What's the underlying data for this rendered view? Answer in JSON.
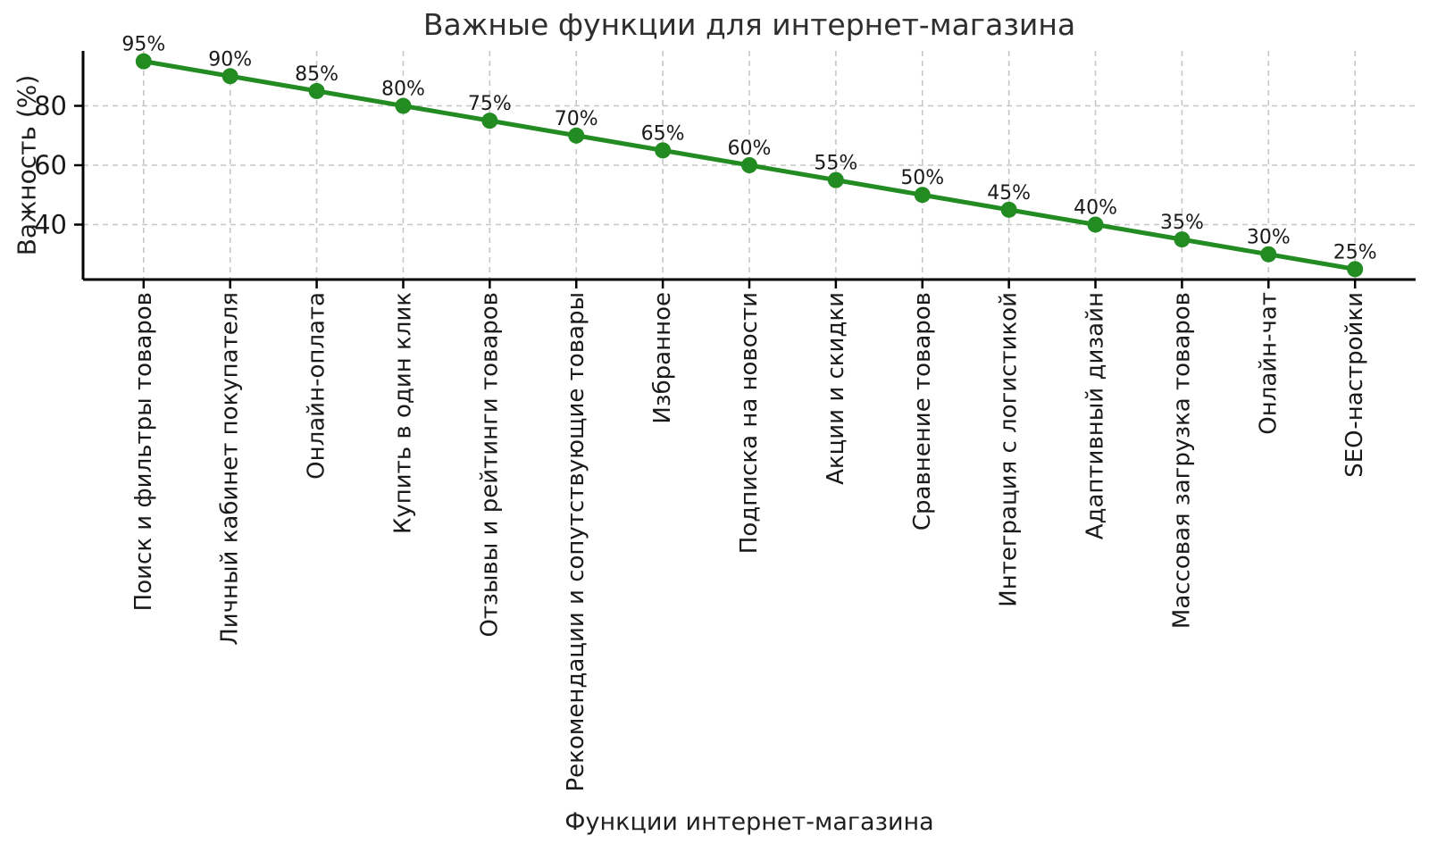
{
  "chart_data": {
    "type": "line",
    "title": "Важные функции для интернет-магазина",
    "xlabel": "Функции интернет-магазина",
    "ylabel": "Важность (%)",
    "categories": [
      "Поиск и фильтры товаров",
      "Личный кабинет покупателя",
      "Онлайн-оплата",
      "Купить в один клик",
      "Отзывы и рейтинги товаров",
      "Рекомендации и сопутствующие товары",
      "Избранное",
      "Подписка на новости",
      "Акции и скидки",
      "Сравнение товаров",
      "Интеграция с логистикой",
      "Адаптивный дизайн",
      "Массовая загрузка товаров",
      "Онлайн-чат",
      "SEO-настройки"
    ],
    "values": [
      95,
      90,
      85,
      80,
      75,
      70,
      65,
      60,
      55,
      50,
      45,
      40,
      35,
      30,
      25
    ],
    "point_labels": [
      "95%",
      "90%",
      "85%",
      "80%",
      "75%",
      "70%",
      "65%",
      "60%",
      "55%",
      "50%",
      "45%",
      "40%",
      "35%",
      "30%",
      "25%"
    ],
    "yticks": [
      40,
      60,
      80
    ],
    "ylim": [
      21.5,
      98.5
    ],
    "grid": true,
    "grid_style": "dashed",
    "legend_position": "none",
    "line_color": "#228B22",
    "marker": "circle",
    "grid_color": "#c6c6c6",
    "axis_color": "#000000",
    "text_color": "#1a1a1a",
    "title_color": "#2e2e2e"
  }
}
